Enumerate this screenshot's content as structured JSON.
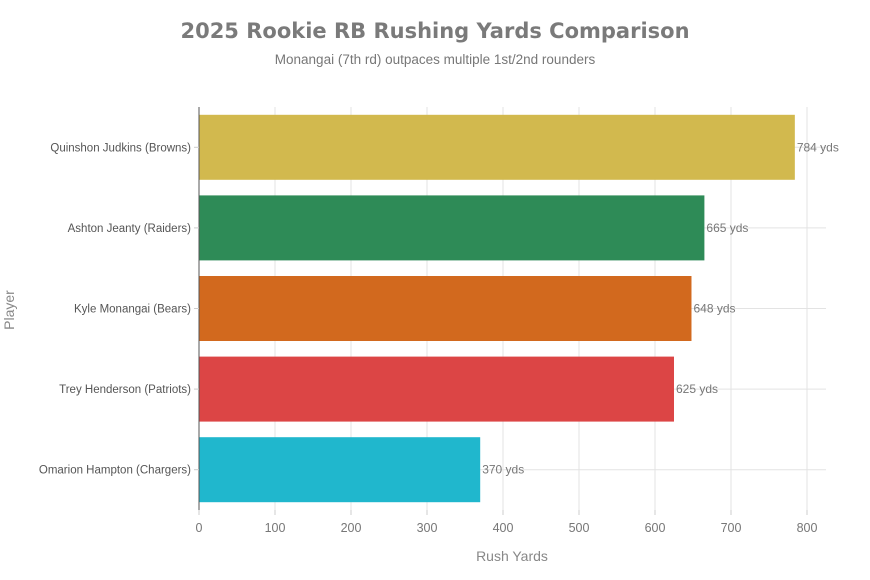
{
  "chart_data": {
    "type": "bar",
    "orientation": "horizontal",
    "title": "2025 Rookie RB Rushing Yards Comparison",
    "subtitle": "Monangai (7th rd) outpaces multiple 1st/2nd rounders",
    "xlabel": "Rush Yards",
    "ylabel": "Player",
    "xlim": [
      0,
      825
    ],
    "xticks": [
      0,
      100,
      200,
      300,
      400,
      500,
      600,
      700,
      800
    ],
    "grid": true,
    "categories": [
      "Quinshon Judkins (Browns)",
      "Ashton Jeanty (Raiders)",
      "Kyle Monangai (Bears)",
      "Trey Henderson (Patriots)",
      "Omarion Hampton (Chargers)"
    ],
    "values": [
      784,
      665,
      648,
      625,
      370
    ],
    "data_labels": [
      "784 yds",
      "665 yds",
      "648 yds",
      "625 yds",
      "370 yds"
    ],
    "colors": [
      "#D2B94E",
      "#2E8B57",
      "#D2691E",
      "#DC4545",
      "#20B7CD"
    ]
  }
}
